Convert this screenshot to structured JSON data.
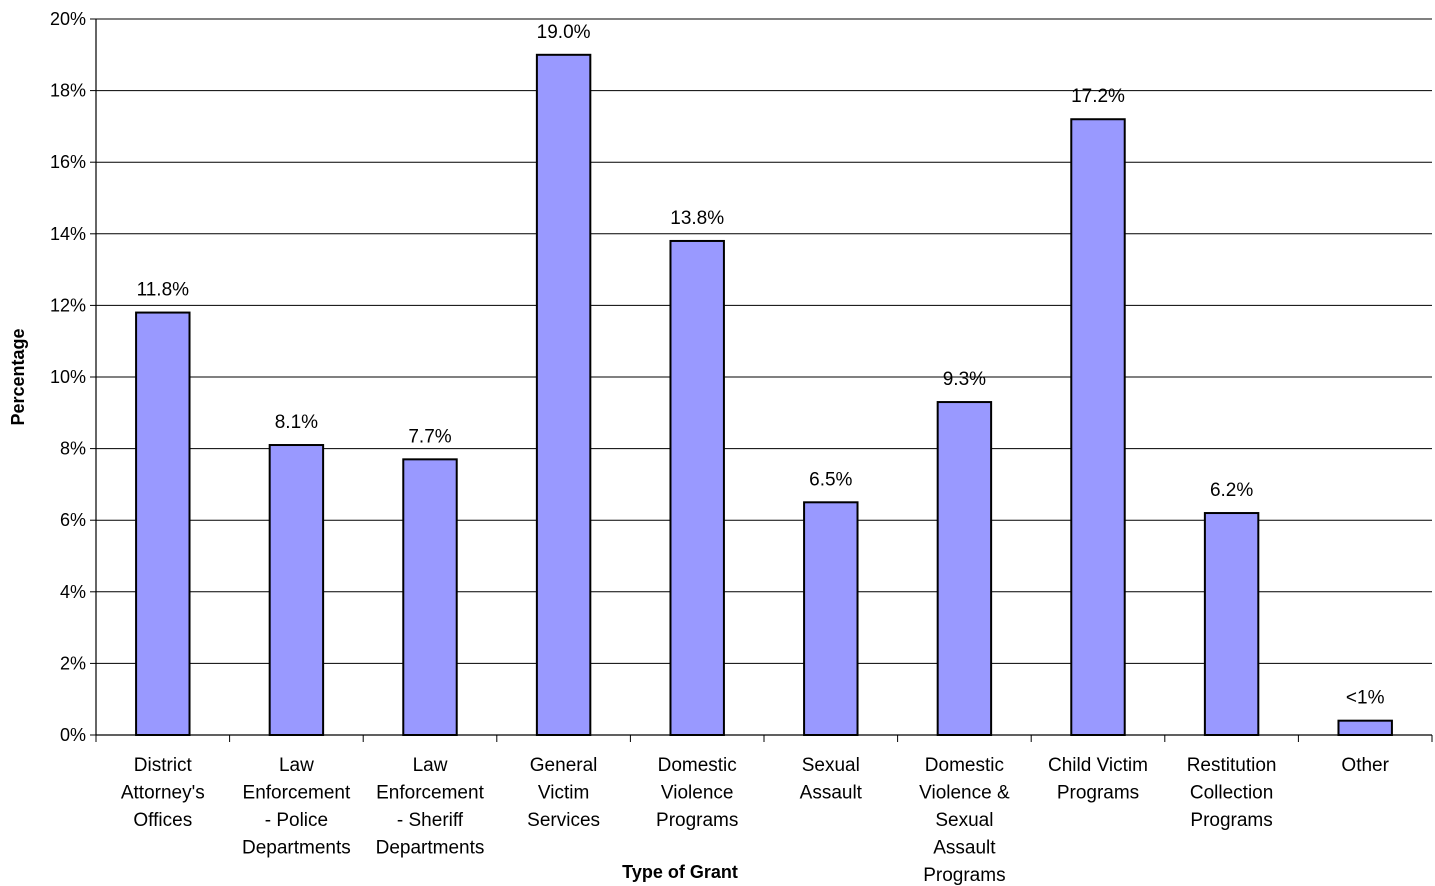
{
  "chart_data": {
    "type": "bar",
    "xlabel": "Type of Grant",
    "ylabel": "Percentage",
    "ylim": [
      0,
      20
    ],
    "yticks": [
      0,
      2,
      4,
      6,
      8,
      10,
      12,
      14,
      16,
      18,
      20
    ],
    "ytick_labels": [
      "0%",
      "2%",
      "4%",
      "6%",
      "8%",
      "10%",
      "12%",
      "14%",
      "16%",
      "18%",
      "20%"
    ],
    "grid": true,
    "legend": "none",
    "bar_color": "#9999ff",
    "categories": [
      "District Attorney's Offices",
      "Law Enforcement - Police Departments",
      "Law Enforcement - Sheriff Departments",
      "General Victim Services",
      "Domestic Violence Programs",
      "Sexual Assault",
      "Domestic Violence & Sexual Assault Programs",
      "Child Victim Programs",
      "Restitution Collection Programs",
      "Other"
    ],
    "category_lines": [
      [
        "District",
        "Attorney's",
        "Offices"
      ],
      [
        "Law",
        "Enforcement",
        "- Police",
        "Departments"
      ],
      [
        "Law",
        "Enforcement",
        "- Sheriff",
        "Departments"
      ],
      [
        "General",
        "Victim",
        "Services"
      ],
      [
        "Domestic",
        "Violence",
        "Programs"
      ],
      [
        "Sexual",
        "Assault"
      ],
      [
        "Domestic",
        "Violence &",
        "Sexual",
        "Assault",
        "Programs"
      ],
      [
        "Child Victim",
        "Programs"
      ],
      [
        "Restitution",
        "Collection",
        "Programs"
      ],
      [
        "Other"
      ]
    ],
    "values": [
      11.8,
      8.1,
      7.7,
      19.0,
      13.8,
      6.5,
      9.3,
      17.2,
      6.2,
      0.4
    ],
    "data_labels": [
      "11.8%",
      "8.1%",
      "7.7%",
      "19.0%",
      "13.8%",
      "6.5%",
      "9.3%",
      "17.2%",
      "6.2%",
      "<1%"
    ]
  }
}
